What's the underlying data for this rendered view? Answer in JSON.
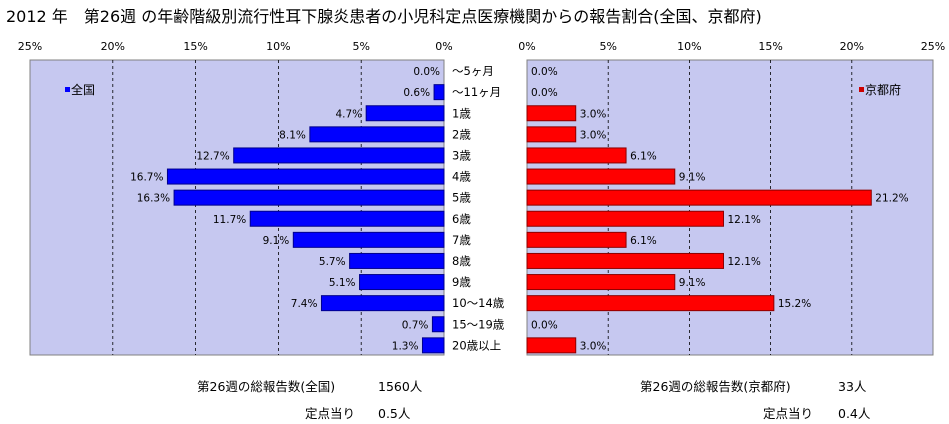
{
  "title": "2012 年　第26週 の年齢階級別流行性耳下腺炎患者の小児科定点医療機関からの報告割合(全国、京都府)",
  "chart_data": [
    {
      "type": "bar",
      "orientation": "horizontal",
      "direction": "right-to-left",
      "legend": "全国",
      "legend_position": "top-left",
      "color": "#0000FF",
      "categories": [
        "～5ヶ月",
        "～11ヶ月",
        "1歳",
        "2歳",
        "3歳",
        "4歳",
        "5歳",
        "6歳",
        "7歳",
        "8歳",
        "9歳",
        "10～14歳",
        "15～19歳",
        "20歳以上"
      ],
      "values": [
        0.0,
        0.6,
        4.7,
        8.1,
        12.7,
        16.7,
        16.3,
        11.7,
        9.1,
        5.7,
        5.1,
        7.4,
        0.7,
        1.3
      ],
      "labels": [
        "0.0%",
        "0.6%",
        "4.7%",
        "8.1%",
        "12.7%",
        "16.7%",
        "16.3%",
        "11.7%",
        "9.1%",
        "5.7%",
        "5.1%",
        "7.4%",
        "0.7%",
        "1.3%"
      ],
      "ticks": [
        "25%",
        "20%",
        "15%",
        "10%",
        "5%",
        "0%"
      ],
      "xlim": [
        0,
        25
      ],
      "grid": true
    },
    {
      "type": "bar",
      "orientation": "horizontal",
      "direction": "left-to-right",
      "legend": "京都府",
      "legend_position": "top-right",
      "color": "#FF0000",
      "categories": [
        "～5ヶ月",
        "～11ヶ月",
        "1歳",
        "2歳",
        "3歳",
        "4歳",
        "5歳",
        "6歳",
        "7歳",
        "8歳",
        "9歳",
        "10～14歳",
        "15～19歳",
        "20歳以上"
      ],
      "values": [
        0.0,
        0.0,
        3.0,
        3.0,
        6.1,
        9.1,
        21.2,
        12.1,
        6.1,
        12.1,
        9.1,
        15.2,
        0.0,
        3.0
      ],
      "labels": [
        "0.0%",
        "0.0%",
        "3.0%",
        "3.0%",
        "6.1%",
        "9.1%",
        "21.2%",
        "12.1%",
        "6.1%",
        "12.1%",
        "9.1%",
        "15.2%",
        "0.0%",
        "3.0%"
      ],
      "ticks": [
        "0%",
        "5%",
        "10%",
        "15%",
        "20%",
        "25%"
      ],
      "xlim": [
        0,
        25
      ],
      "grid": true
    }
  ],
  "summary": {
    "national_total_label": "第26週の総報告数(全国)",
    "national_total_value": "1560人",
    "national_per_label": "定点当り",
    "national_per_value": "0.5人",
    "kyoto_total_label": "第26週の総報告数(京都府)",
    "kyoto_total_value": "33人",
    "kyoto_per_label": "定点当り",
    "kyoto_per_value": "0.4人"
  }
}
